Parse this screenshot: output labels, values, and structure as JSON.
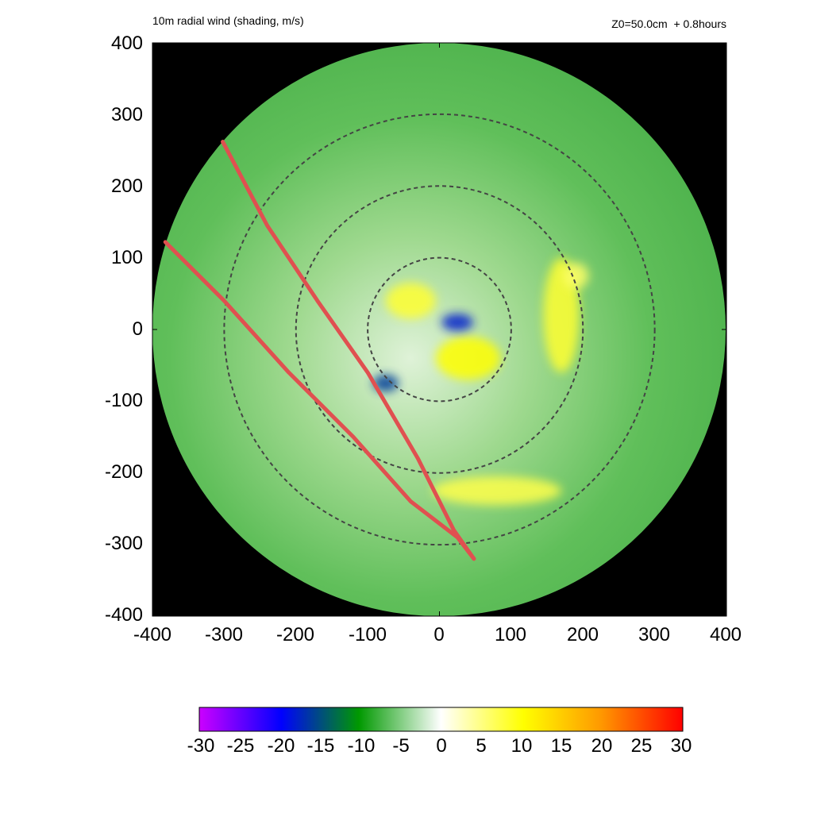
{
  "header": {
    "title_left": "10m radial wind (shading, m/s)",
    "title_right": "Z0=50.0cm  + 0.8hours"
  },
  "colors": {
    "background_outside_domain": "#000000",
    "base_inflow": "#55b955",
    "track_line": "#e05050",
    "range_rings": "#444444"
  },
  "chart_data": {
    "type": "heatmap",
    "title": "10m radial wind (shading, m/s)",
    "annotation": "Z0=50.0cm  + 0.8hours",
    "xlim": [
      -400,
      400
    ],
    "ylim": [
      -400,
      400
    ],
    "x_ticks": [
      "-400",
      "-300",
      "-200",
      "-100",
      "0",
      "100",
      "200",
      "300",
      "400"
    ],
    "y_ticks": [
      "400",
      "300",
      "200",
      "100",
      "0",
      "-100",
      "-200",
      "-300",
      "-400"
    ],
    "domain_radius": 400,
    "range_rings_radii": [
      100,
      200,
      300
    ],
    "colorbar": {
      "range": [
        -30,
        30
      ],
      "ticks": [
        "-30",
        "-25",
        "-20",
        "-15",
        "-10",
        "-5",
        "0",
        "5",
        "10",
        "15",
        "20",
        "25",
        "30"
      ],
      "stops": [
        "#cc00ff",
        "#0000ff",
        "#009900",
        "#ffffff",
        "#ffff00",
        "#ff9900",
        "#ff0000"
      ]
    },
    "tracks": [
      {
        "points": [
          [
            -302,
            262
          ],
          [
            -240,
            145
          ],
          [
            -170,
            40
          ],
          [
            -100,
            -60
          ],
          [
            -30,
            -180
          ],
          [
            20,
            -280
          ],
          [
            48,
            -320
          ]
        ]
      },
      {
        "points": [
          [
            -382,
            122
          ],
          [
            -300,
            40
          ],
          [
            -210,
            -60
          ],
          [
            -120,
            -150
          ],
          [
            -40,
            -240
          ],
          [
            25,
            -290
          ],
          [
            48,
            -320
          ]
        ]
      }
    ],
    "features": [
      {
        "kind": "outflow",
        "x": -40,
        "y": 40,
        "rx": 35,
        "ry": 25,
        "value": 8
      },
      {
        "kind": "outflow",
        "x": 40,
        "y": -40,
        "rx": 45,
        "ry": 30,
        "value": 10
      },
      {
        "kind": "inflow_core",
        "x": 25,
        "y": 10,
        "rx": 22,
        "ry": 12,
        "value": -18
      },
      {
        "kind": "inflow_core",
        "x": -75,
        "y": -75,
        "rx": 18,
        "ry": 12,
        "value": -16
      },
      {
        "kind": "outflow_band",
        "x": 170,
        "y": 20,
        "rx": 25,
        "ry": 80,
        "value": 8
      },
      {
        "kind": "outflow_band",
        "x": 80,
        "y": -225,
        "rx": 90,
        "ry": 20,
        "value": 7
      },
      {
        "kind": "outflow",
        "x": 190,
        "y": 75,
        "rx": 18,
        "ry": 18,
        "value": 6
      }
    ]
  }
}
